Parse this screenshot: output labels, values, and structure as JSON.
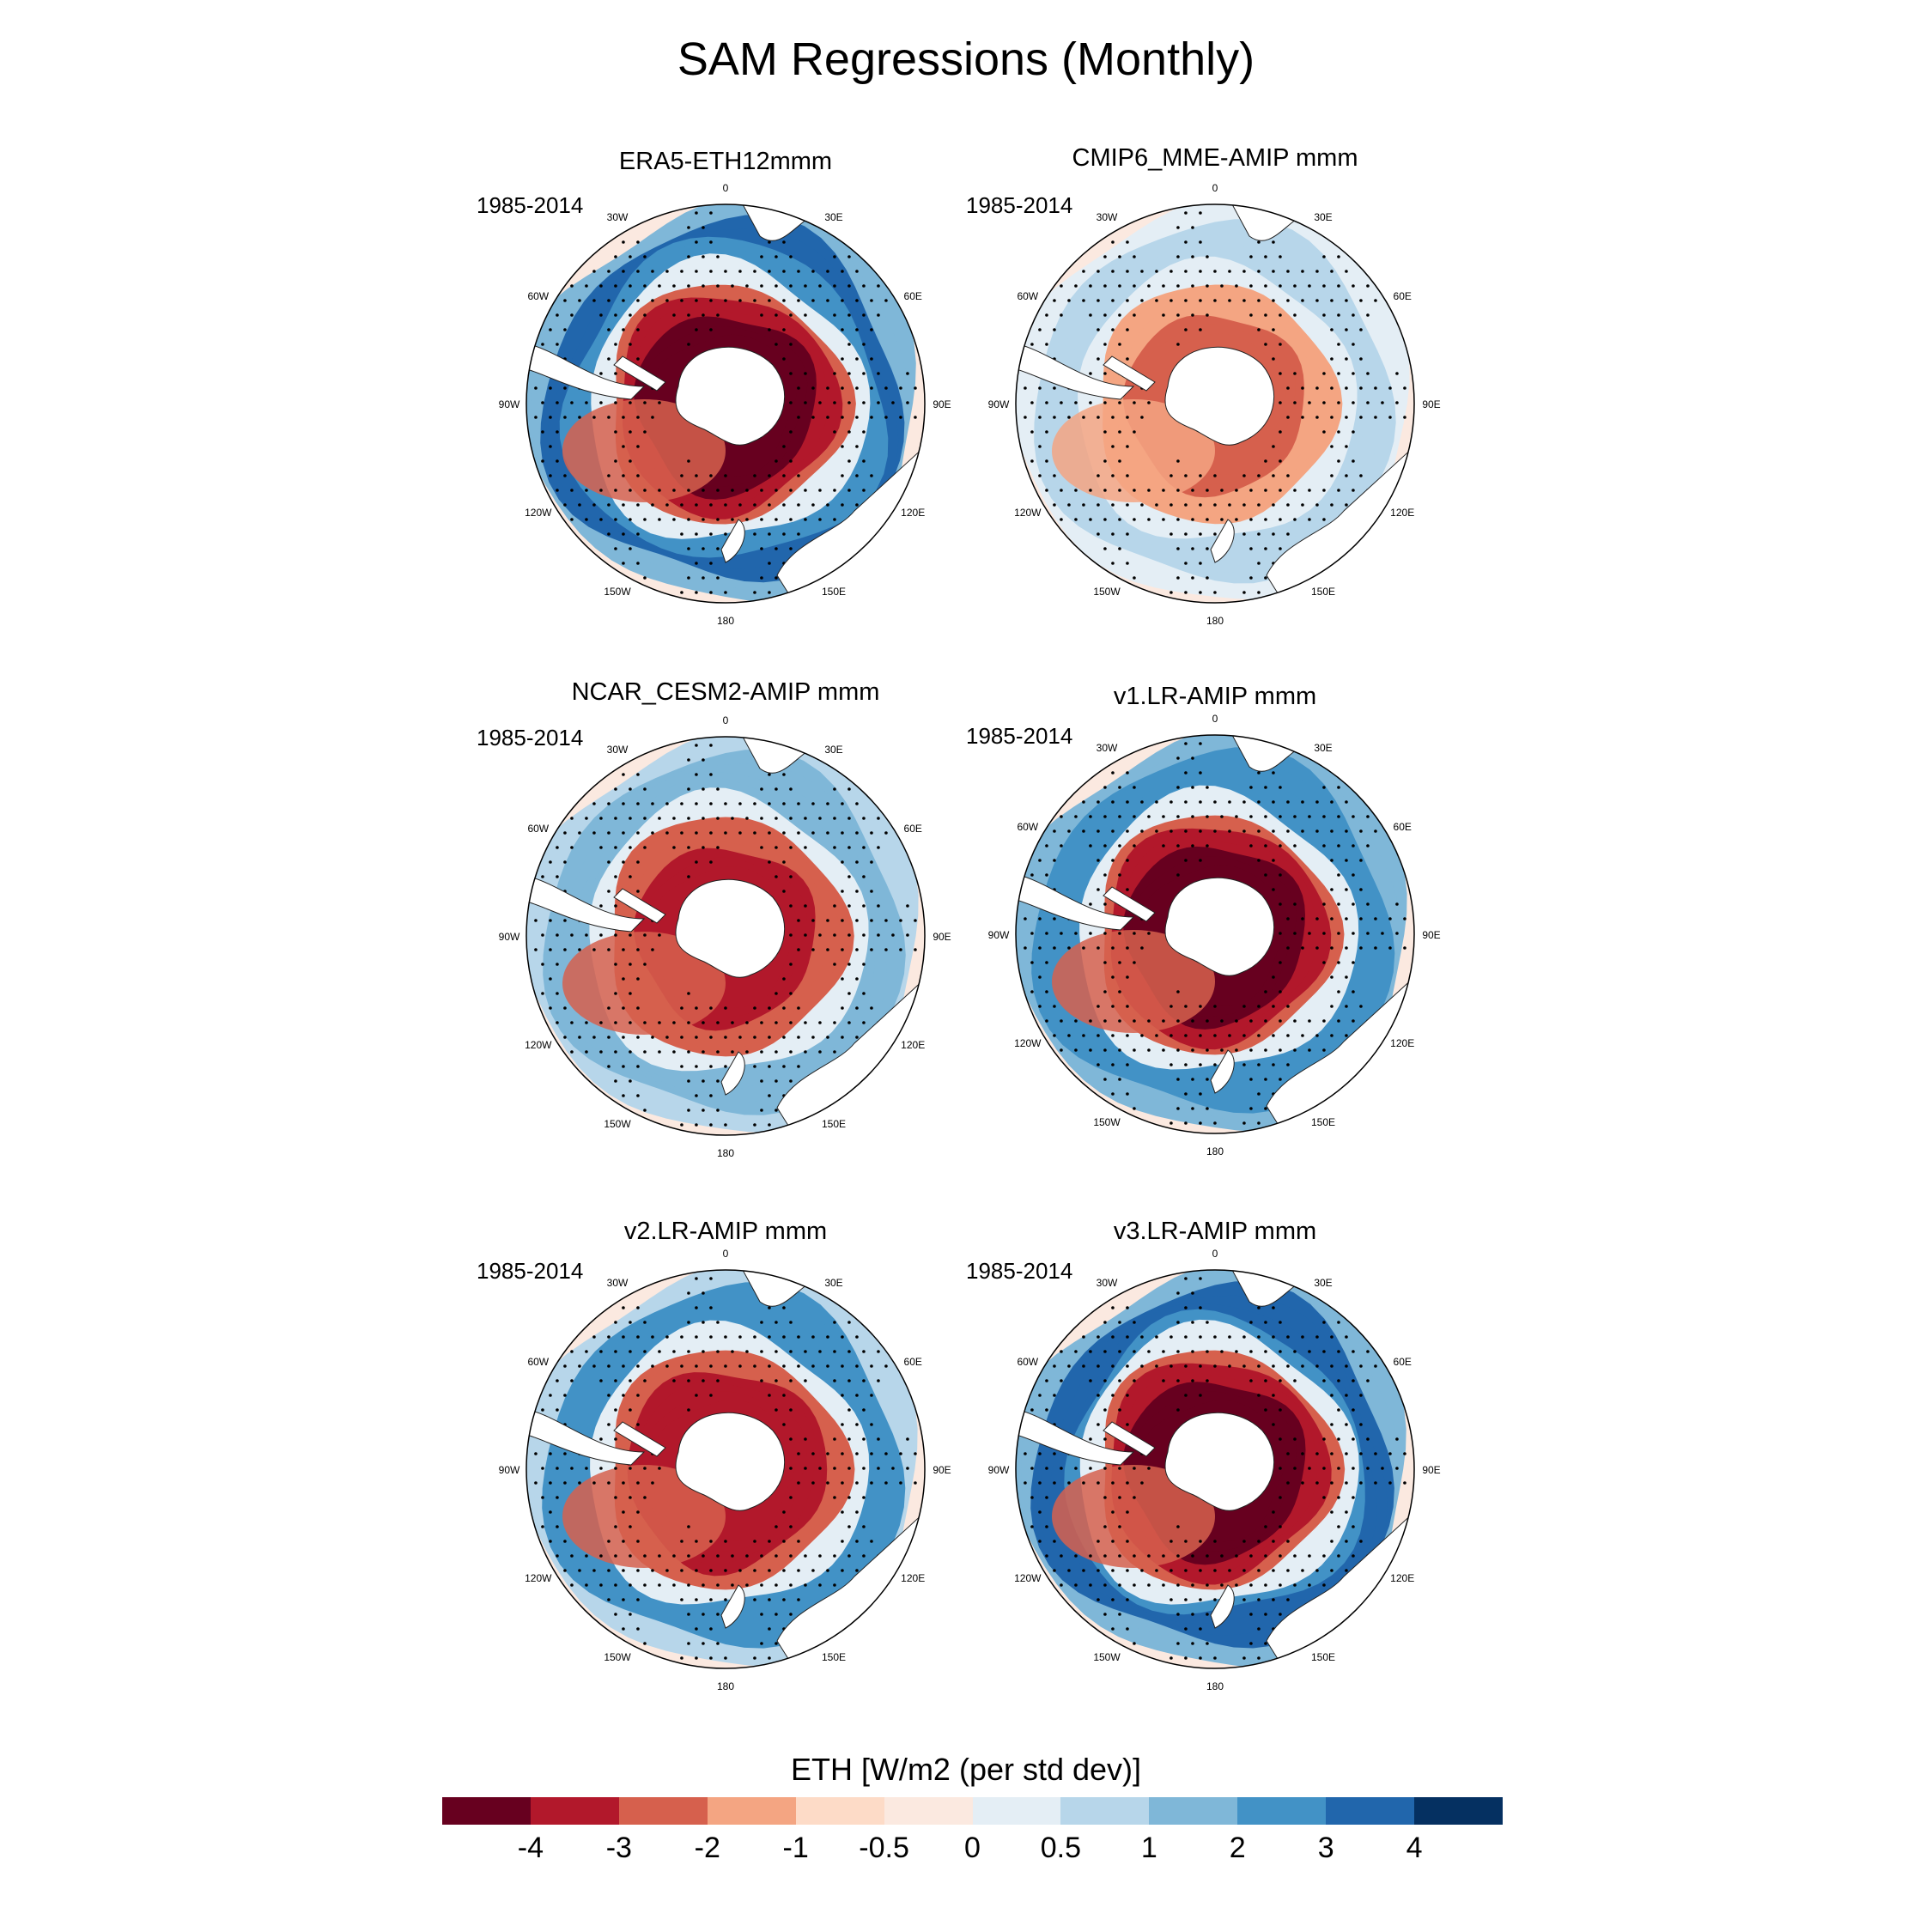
{
  "title": "SAM Regressions (Monthly)",
  "panels": [
    {
      "title": "ERA5-ETH12mmm",
      "period": "1985-2014",
      "inner": -4.5,
      "outer": 3.2,
      "contrast": 1.2
    },
    {
      "title": "CMIP6_MME-AMIP  mmm",
      "period": "1985-2014",
      "inner": -2.2,
      "outer": 1.0,
      "contrast": 0.7
    },
    {
      "title": "NCAR_CESM2-AMIP  mmm",
      "period": "1985-2014",
      "inner": -3.5,
      "outer": 1.8,
      "contrast": 0.9
    },
    {
      "title": "v1.LR-AMIP  mmm",
      "period": "1985-2014",
      "inner": -4.3,
      "outer": 3.0,
      "contrast": 1.0
    },
    {
      "title": "v2.LR-AMIP  mmm",
      "period": "1985-2014",
      "inner": -4.0,
      "outer": 2.6,
      "contrast": 1.0
    },
    {
      "title": "v3.LR-AMIP  mmm",
      "period": "1985-2014",
      "inner": -4.5,
      "outer": 3.5,
      "contrast": 1.1
    }
  ],
  "lon_labels": [
    "0",
    "30E",
    "60E",
    "90E",
    "120E",
    "150E",
    "180",
    "150W",
    "120W",
    "90W",
    "60W",
    "30W"
  ],
  "colorbar": {
    "title": "ETH [W/m2 (per std dev)]",
    "levels": [
      "-4",
      "-3",
      "-2",
      "-1",
      "-0.5",
      "0",
      "0.5",
      "1",
      "2",
      "3",
      "4"
    ],
    "colors": [
      "#67001f",
      "#b2182b",
      "#d6604d",
      "#f4a582",
      "#fddbc7",
      "#fbe9e0",
      "#e4eef5",
      "#b7d6ea",
      "#7fb7d8",
      "#4292c6",
      "#2166ac",
      "#053061"
    ]
  }
}
